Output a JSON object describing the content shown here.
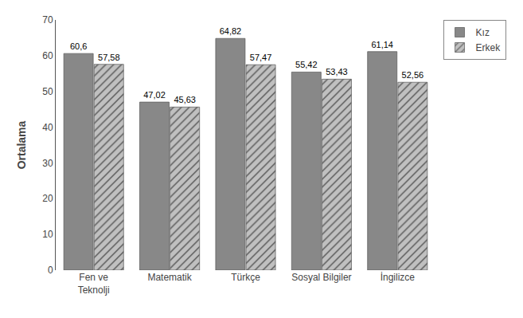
{
  "chart_data": {
    "type": "bar",
    "categories": [
      "Fen ve\nTeknolji",
      "Matematik",
      "Türkçe",
      "Sosyal Bilgiler",
      "İngilizce"
    ],
    "series": [
      {
        "name": "Kız",
        "color": "#888888",
        "values": [
          60.6,
          47.02,
          64.82,
          55.42,
          61.14
        ],
        "value_labels": [
          "60,6",
          "47,02",
          "64,82",
          "55,42",
          "61,14"
        ]
      },
      {
        "name": "Erkek",
        "color": "#c0c0c0",
        "values": [
          57.58,
          45.63,
          57.47,
          53.43,
          52.56
        ],
        "value_labels": [
          "57,58",
          "45,63",
          "57,47",
          "53,43",
          "52,56"
        ]
      }
    ],
    "ylabel": "Ortalama",
    "ylim": [
      0,
      70
    ],
    "yticks": [
      0,
      10,
      20,
      30,
      40,
      50,
      60,
      70
    ],
    "grid": false,
    "legend": "upper right",
    "data_labels": true
  }
}
